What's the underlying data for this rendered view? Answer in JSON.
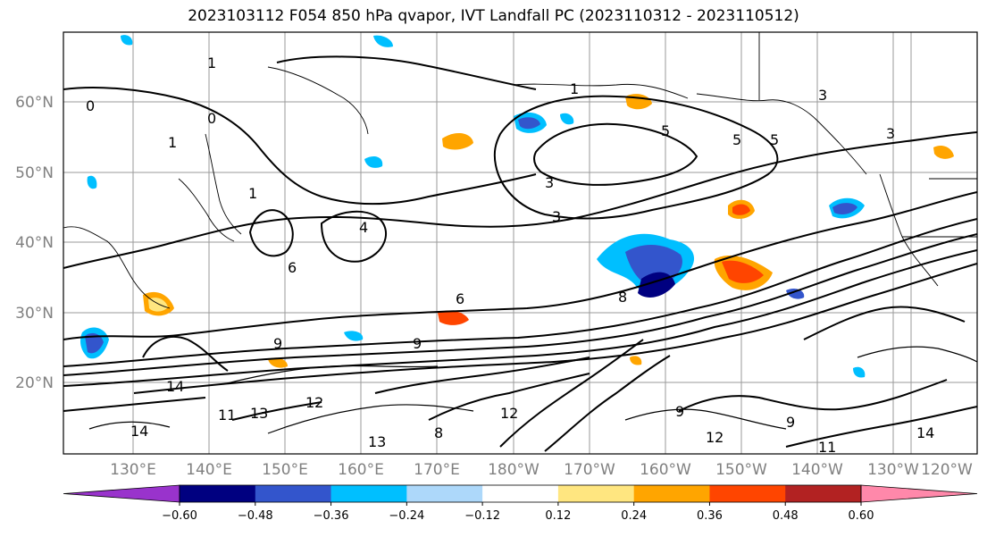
{
  "title": "2023103112 F054 850 hPa qvapor, IVT Landfall PC (2023110312 - 2023110512)",
  "map": {
    "lat_labels": [
      "60°N",
      "50°N",
      "40°N",
      "30°N",
      "20°N"
    ],
    "lon_labels": [
      "130°E",
      "140°E",
      "150°E",
      "160°E",
      "170°E",
      "180°W",
      "170°W",
      "160°W",
      "150°W",
      "140°W",
      "130°W",
      "120°W"
    ],
    "contour_labels": [
      "0",
      "0",
      "1",
      "1",
      "1",
      "1",
      "3",
      "3",
      "3",
      "3",
      "4",
      "5",
      "5",
      "5",
      "6",
      "6",
      "8",
      "9",
      "9",
      "9",
      "11",
      "12",
      "12",
      "13",
      "13",
      "14",
      "14",
      "14",
      "11",
      "8",
      "12",
      "9"
    ]
  },
  "colorbar": {
    "colors": [
      "#9933cc",
      "#000080",
      "#3355cc",
      "#00bfff",
      "#add8fa",
      "#ffffff",
      "#ffe680",
      "#ffa500",
      "#ff4500",
      "#b22222",
      "#ff88aa"
    ],
    "ticks": [
      "−0.60",
      "−0.48",
      "−0.36",
      "−0.24",
      "−0.12",
      "0.12",
      "0.24",
      "0.36",
      "0.48",
      "0.60"
    ]
  }
}
